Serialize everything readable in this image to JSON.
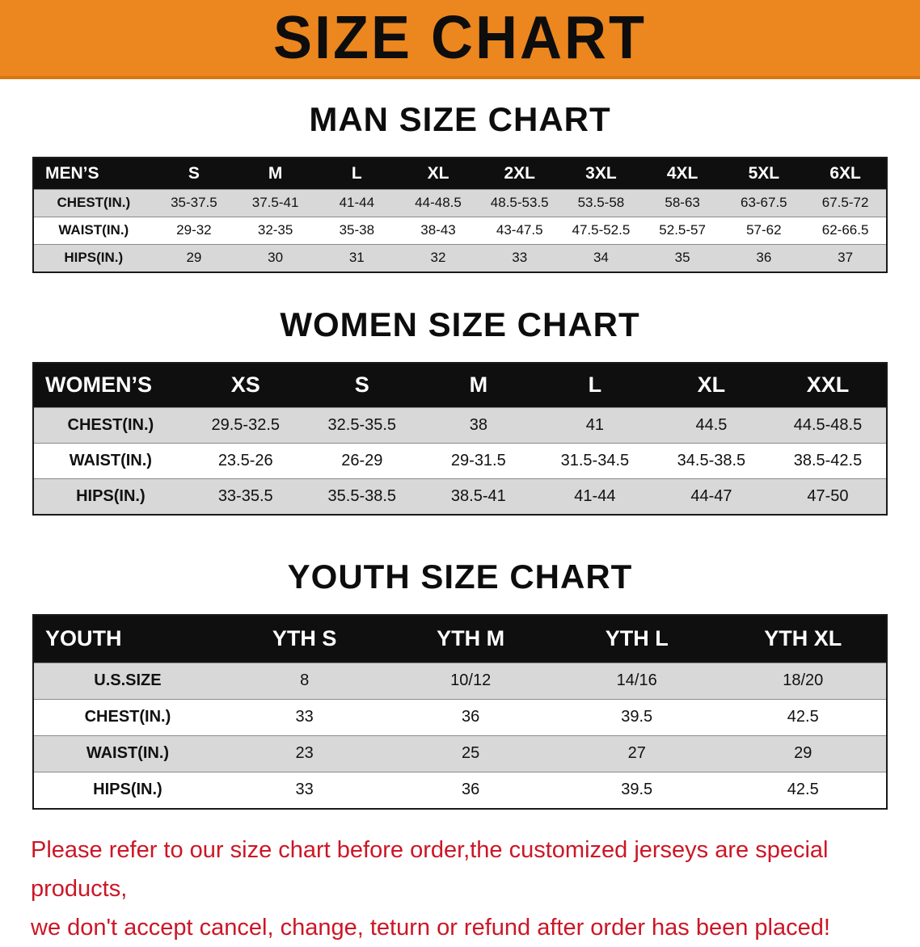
{
  "banner": {
    "title": "SIZE CHART",
    "bg_color": "#EC861E",
    "text_color": "#0d0d0d"
  },
  "colors": {
    "row_gray": "#d8d8d8",
    "header_black": "#0f0f0f",
    "disclaimer_red": "#cc1626"
  },
  "sections": [
    {
      "heading": "MAN SIZE CHART",
      "table": {
        "header": [
          "MEN’S",
          "S",
          "M",
          "L",
          "XL",
          "2XL",
          "3XL",
          "4XL",
          "5XL",
          "6XL"
        ],
        "rows": [
          [
            "CHEST(IN.)",
            "35-37.5",
            "37.5-41",
            "41-44",
            "44-48.5",
            "48.5-53.5",
            "53.5-58",
            "58-63",
            "63-67.5",
            "67.5-72"
          ],
          [
            "WAIST(IN.)",
            "29-32",
            "32-35",
            "35-38",
            "38-43",
            "43-47.5",
            "47.5-52.5",
            "52.5-57",
            "57-62",
            "62-66.5"
          ],
          [
            "HIPS(IN.)",
            "29",
            "30",
            "31",
            "32",
            "33",
            "34",
            "35",
            "36",
            "37"
          ]
        ]
      }
    },
    {
      "heading": "WOMEN SIZE CHART",
      "table": {
        "header": [
          "WOMEN’S",
          "XS",
          "S",
          "M",
          "L",
          "XL",
          "XXL"
        ],
        "rows": [
          [
            "CHEST(IN.)",
            "29.5-32.5",
            "32.5-35.5",
            "38",
            "41",
            "44.5",
            "44.5-48.5"
          ],
          [
            "WAIST(IN.)",
            "23.5-26",
            "26-29",
            "29-31.5",
            "31.5-34.5",
            "34.5-38.5",
            "38.5-42.5"
          ],
          [
            "HIPS(IN.)",
            "33-35.5",
            "35.5-38.5",
            "38.5-41",
            "41-44",
            "44-47",
            "47-50"
          ]
        ]
      }
    },
    {
      "heading": "YOUTH SIZE CHART",
      "table": {
        "header": [
          "YOUTH",
          "YTH S",
          "YTH M",
          "YTH L",
          "YTH XL"
        ],
        "rows": [
          [
            "U.S.SIZE",
            "8",
            "10/12",
            "14/16",
            "18/20"
          ],
          [
            "CHEST(IN.)",
            "33",
            "36",
            "39.5",
            "42.5"
          ],
          [
            "WAIST(IN.)",
            "23",
            "25",
            "27",
            "29"
          ],
          [
            "HIPS(IN.)",
            "33",
            "36",
            "39.5",
            "42.5"
          ]
        ]
      }
    }
  ],
  "disclaimer": {
    "line1": "Please refer to our size chart before order,the customized jerseys are special products,",
    "line2": "we don't accept cancel, change, teturn or refund after order has been placed!"
  }
}
